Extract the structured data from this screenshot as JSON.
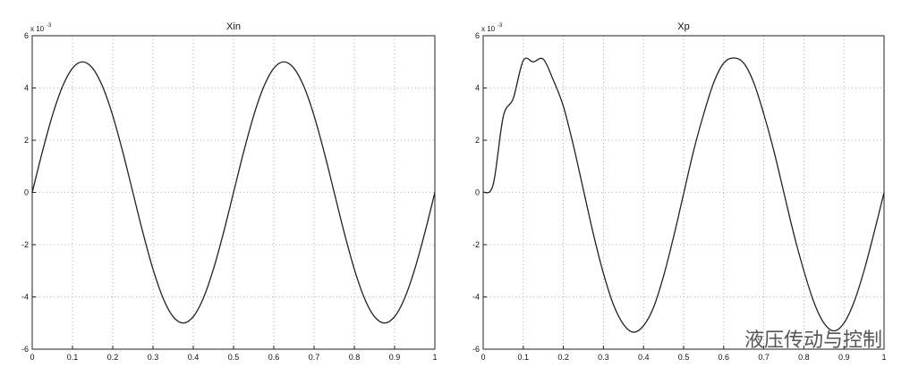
{
  "chart_data": [
    {
      "type": "line",
      "title": "Xin",
      "y_scale_label": "x 10",
      "y_scale_exponent": "-3",
      "x": [
        0,
        0.025,
        0.05,
        0.075,
        0.1,
        0.125,
        0.15,
        0.175,
        0.2,
        0.225,
        0.25,
        0.275,
        0.3,
        0.325,
        0.35,
        0.375,
        0.4,
        0.425,
        0.45,
        0.475,
        0.5,
        0.525,
        0.55,
        0.575,
        0.6,
        0.625,
        0.65,
        0.675,
        0.7,
        0.725,
        0.75,
        0.775,
        0.8,
        0.825,
        0.85,
        0.875,
        0.9,
        0.925,
        0.95,
        0.975,
        1
      ],
      "series": [
        {
          "color": "#222222",
          "values": [
            0,
            1.545,
            2.939,
            4.045,
            4.755,
            5,
            4.755,
            4.045,
            2.939,
            1.545,
            0,
            -1.545,
            -2.939,
            -4.045,
            -4.755,
            -5,
            -4.755,
            -4.045,
            -2.939,
            -1.545,
            0,
            1.545,
            2.939,
            4.045,
            4.755,
            5,
            4.755,
            4.045,
            2.939,
            1.545,
            0,
            -1.545,
            -2.939,
            -4.045,
            -4.755,
            -5,
            -4.755,
            -4.045,
            -2.939,
            -1.545,
            0
          ]
        }
      ],
      "xlim": [
        0,
        1
      ],
      "xticks": [
        0,
        0.1,
        0.2,
        0.3,
        0.4,
        0.5,
        0.6,
        0.7,
        0.8,
        0.9,
        1
      ],
      "ylim": [
        -6,
        6
      ],
      "yticks": [
        -6,
        -4,
        -2,
        0,
        2,
        4,
        6
      ],
      "grid": true
    },
    {
      "type": "line",
      "title": "Xp",
      "y_scale_label": "x 10",
      "y_scale_exponent": "-3",
      "x": [
        0,
        0.025,
        0.05,
        0.075,
        0.1,
        0.125,
        0.15,
        0.175,
        0.2,
        0.225,
        0.25,
        0.275,
        0.3,
        0.325,
        0.35,
        0.375,
        0.4,
        0.425,
        0.45,
        0.475,
        0.5,
        0.525,
        0.55,
        0.575,
        0.6,
        0.625,
        0.65,
        0.675,
        0.7,
        0.725,
        0.75,
        0.775,
        0.8,
        0.825,
        0.85,
        0.875,
        0.9,
        0.925,
        0.95,
        0.975,
        1
      ],
      "series": [
        {
          "color": "#222222",
          "values": [
            0,
            0.3,
            2.9,
            3.6,
            5.05,
            5.0,
            5.1,
            4.3,
            3.3,
            1.8,
            0.1,
            -1.6,
            -3.1,
            -4.3,
            -5.05,
            -5.35,
            -5.1,
            -4.4,
            -3.2,
            -1.7,
            -0.05,
            1.6,
            3.0,
            4.2,
            4.95,
            5.15,
            4.95,
            4.2,
            3.0,
            1.6,
            0,
            -1.6,
            -3.0,
            -4.2,
            -5.0,
            -5.3,
            -5.0,
            -4.2,
            -3.0,
            -1.55,
            0
          ]
        }
      ],
      "xlim": [
        0,
        1
      ],
      "xticks": [
        0,
        0.1,
        0.2,
        0.3,
        0.4,
        0.5,
        0.6,
        0.7,
        0.8,
        0.9,
        1
      ],
      "ylim": [
        -6,
        6
      ],
      "yticks": [
        -6,
        -4,
        -2,
        0,
        2,
        4,
        6
      ],
      "grid": true,
      "watermark": "液压传动与控制"
    }
  ]
}
